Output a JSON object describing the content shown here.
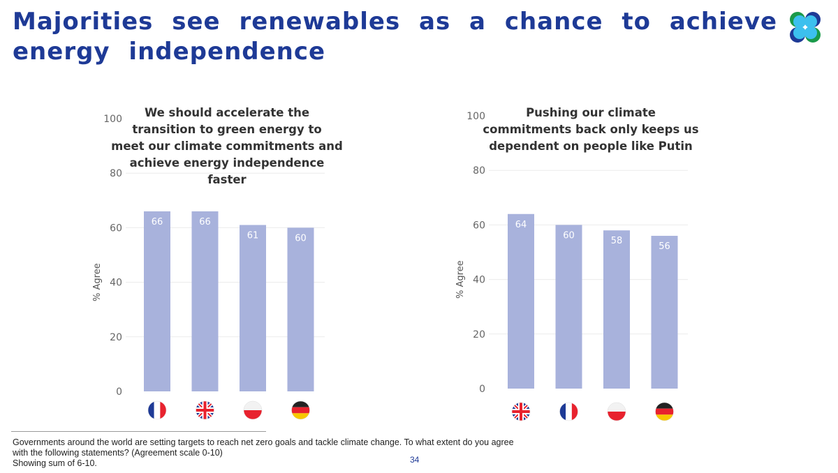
{
  "title": "Majorities see renewables as a chance to achieve energy independence",
  "colors": {
    "title": "#1e3a96",
    "bar": "#a8b2dc",
    "bar_label": "#ffffff"
  },
  "chart_data": [
    {
      "type": "bar",
      "title": "We should accelerate the transition to green energy to meet our climate commitments and achieve energy independence faster",
      "ylabel": "% Agree",
      "ylim": [
        0,
        100
      ],
      "yticks": [
        0,
        20,
        40,
        60,
        80,
        100
      ],
      "categories": [
        "France",
        "UK",
        "Poland",
        "Germany"
      ],
      "category_icons": [
        "flag-france",
        "flag-uk",
        "flag-poland",
        "flag-germany"
      ],
      "values": [
        66,
        66,
        61,
        60
      ],
      "grid": true
    },
    {
      "type": "bar",
      "title": "Pushing our climate commitments back only keeps us dependent on people like Putin",
      "ylabel": "% Agree",
      "ylim": [
        0,
        100
      ],
      "yticks": [
        0,
        20,
        40,
        60,
        80,
        100
      ],
      "categories": [
        "UK",
        "France",
        "Poland",
        "Germany"
      ],
      "category_icons": [
        "flag-uk",
        "flag-france",
        "flag-poland",
        "flag-germany"
      ],
      "values": [
        64,
        60,
        58,
        56
      ],
      "grid": true
    }
  ],
  "footnote": [
    "Governments around the world are setting targets to reach net zero goals and tackle climate change. To what extent do you agree with the following statements? (Agreement scale 0-10)",
    "Showing sum of 6-10."
  ],
  "page_number": "34"
}
